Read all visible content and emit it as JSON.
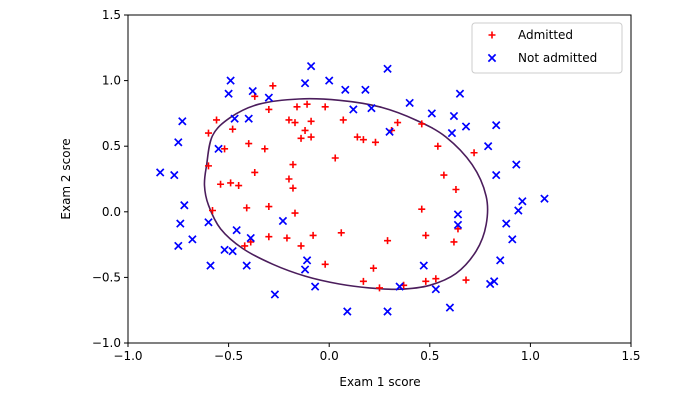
{
  "chart_data": {
    "type": "scatter",
    "xlabel": "Exam 1 score",
    "ylabel": "Exam 2 score",
    "xlim": [
      -1.0,
      1.5
    ],
    "ylim": [
      -1.0,
      1.5
    ],
    "xticks": [
      "−1.0",
      "−0.5",
      "0.0",
      "0.5",
      "1.0",
      "1.5"
    ],
    "yticks": [
      "−1.0",
      "−0.5",
      "0.0",
      "0.5",
      "1.0",
      "1.5"
    ],
    "grid": false,
    "legend_position": "top-right",
    "series": [
      {
        "name": "Admitted",
        "marker": "plus",
        "color": "#ff0000",
        "points": [
          [
            -0.28,
            0.96
          ],
          [
            -0.37,
            0.88
          ],
          [
            -0.3,
            0.78
          ],
          [
            -0.16,
            0.8
          ],
          [
            -0.11,
            0.82
          ],
          [
            -0.02,
            0.8
          ],
          [
            0.07,
            0.7
          ],
          [
            -0.2,
            0.7
          ],
          [
            -0.17,
            0.68
          ],
          [
            -0.09,
            0.69
          ],
          [
            -0.56,
            0.7
          ],
          [
            -0.48,
            0.63
          ],
          [
            -0.6,
            0.6
          ],
          [
            -0.52,
            0.48
          ],
          [
            -0.4,
            0.52
          ],
          [
            -0.32,
            0.48
          ],
          [
            -0.14,
            0.56
          ],
          [
            -0.09,
            0.57
          ],
          [
            -0.12,
            0.62
          ],
          [
            0.14,
            0.57
          ],
          [
            0.17,
            0.55
          ],
          [
            0.23,
            0.53
          ],
          [
            0.31,
            0.62
          ],
          [
            0.34,
            0.68
          ],
          [
            0.46,
            0.67
          ],
          [
            0.54,
            0.5
          ],
          [
            0.57,
            0.28
          ],
          [
            0.63,
            0.17
          ],
          [
            0.72,
            0.45
          ],
          [
            0.03,
            0.41
          ],
          [
            -0.18,
            0.36
          ],
          [
            -0.6,
            0.35
          ],
          [
            -0.37,
            0.3
          ],
          [
            -0.49,
            0.22
          ],
          [
            -0.45,
            0.2
          ],
          [
            -0.54,
            0.21
          ],
          [
            -0.18,
            0.18
          ],
          [
            -0.2,
            0.25
          ],
          [
            -0.3,
            0.04
          ],
          [
            -0.41,
            0.03
          ],
          [
            -0.58,
            0.01
          ],
          [
            -0.17,
            -0.01
          ],
          [
            -0.3,
            -0.19
          ],
          [
            -0.21,
            -0.2
          ],
          [
            -0.39,
            -0.23
          ],
          [
            -0.42,
            -0.26
          ],
          [
            -0.14,
            -0.26
          ],
          [
            -0.08,
            -0.18
          ],
          [
            0.06,
            -0.16
          ],
          [
            -0.02,
            -0.4
          ],
          [
            0.17,
            -0.53
          ],
          [
            0.25,
            -0.58
          ],
          [
            0.22,
            -0.43
          ],
          [
            0.29,
            -0.22
          ],
          [
            0.37,
            -0.56
          ],
          [
            0.48,
            -0.53
          ],
          [
            0.53,
            -0.51
          ],
          [
            0.68,
            -0.52
          ],
          [
            0.62,
            -0.23
          ],
          [
            0.64,
            -0.13
          ],
          [
            0.48,
            -0.18
          ],
          [
            0.46,
            0.02
          ]
        ]
      },
      {
        "name": "Not admitted",
        "marker": "x",
        "color": "#0000ff",
        "points": [
          [
            -0.49,
            1.0
          ],
          [
            -0.5,
            0.9
          ],
          [
            -0.38,
            0.92
          ],
          [
            -0.3,
            0.87
          ],
          [
            -0.09,
            1.11
          ],
          [
            -0.12,
            0.98
          ],
          [
            0.0,
            1.0
          ],
          [
            0.08,
            0.93
          ],
          [
            0.18,
            0.93
          ],
          [
            0.29,
            1.09
          ],
          [
            0.4,
            0.83
          ],
          [
            0.51,
            0.75
          ],
          [
            0.65,
            0.9
          ],
          [
            0.62,
            0.73
          ],
          [
            0.68,
            0.65
          ],
          [
            0.83,
            0.66
          ],
          [
            0.61,
            0.6
          ],
          [
            0.79,
            0.5
          ],
          [
            0.93,
            0.36
          ],
          [
            0.83,
            0.28
          ],
          [
            0.96,
            0.08
          ],
          [
            1.07,
            0.1
          ],
          [
            0.94,
            0.01
          ],
          [
            0.88,
            -0.09
          ],
          [
            0.91,
            -0.21
          ],
          [
            0.85,
            -0.37
          ],
          [
            0.82,
            -0.53
          ],
          [
            0.8,
            -0.55
          ],
          [
            0.64,
            -0.02
          ],
          [
            0.64,
            -0.1
          ],
          [
            0.47,
            -0.41
          ],
          [
            0.53,
            -0.59
          ],
          [
            0.6,
            -0.73
          ],
          [
            0.35,
            -0.57
          ],
          [
            0.29,
            -0.76
          ],
          [
            0.09,
            -0.76
          ],
          [
            -0.07,
            -0.57
          ],
          [
            -0.27,
            -0.63
          ],
          [
            -0.11,
            -0.37
          ],
          [
            -0.12,
            -0.44
          ],
          [
            0.12,
            0.78
          ],
          [
            0.21,
            0.79
          ],
          [
            0.3,
            0.61
          ],
          [
            -0.4,
            0.71
          ],
          [
            -0.47,
            0.71
          ],
          [
            -0.55,
            0.48
          ],
          [
            -0.73,
            0.69
          ],
          [
            -0.75,
            0.53
          ],
          [
            -0.84,
            0.3
          ],
          [
            -0.77,
            0.28
          ],
          [
            -0.72,
            0.05
          ],
          [
            -0.74,
            -0.09
          ],
          [
            -0.6,
            -0.08
          ],
          [
            -0.68,
            -0.21
          ],
          [
            -0.75,
            -0.26
          ],
          [
            -0.46,
            -0.14
          ],
          [
            -0.48,
            -0.3
          ],
          [
            -0.39,
            -0.2
          ],
          [
            -0.41,
            -0.41
          ],
          [
            -0.59,
            -0.41
          ],
          [
            -0.23,
            -0.07
          ],
          [
            -0.52,
            -0.29
          ]
        ]
      }
    ],
    "decision_boundary": {
      "shape": "closed curve",
      "color": "#4b1d5c",
      "points": [
        [
          -0.61,
          0.35
        ],
        [
          -0.58,
          0.58
        ],
        [
          -0.49,
          0.72
        ],
        [
          -0.35,
          0.82
        ],
        [
          -0.15,
          0.86
        ],
        [
          0.05,
          0.85
        ],
        [
          0.25,
          0.8
        ],
        [
          0.43,
          0.7
        ],
        [
          0.58,
          0.57
        ],
        [
          0.71,
          0.36
        ],
        [
          0.78,
          0.12
        ],
        [
          0.78,
          -0.1
        ],
        [
          0.73,
          -0.3
        ],
        [
          0.63,
          -0.47
        ],
        [
          0.5,
          -0.56
        ],
        [
          0.35,
          -0.59
        ],
        [
          0.2,
          -0.58
        ],
        [
          0.05,
          -0.55
        ],
        [
          -0.12,
          -0.49
        ],
        [
          -0.28,
          -0.4
        ],
        [
          -0.43,
          -0.28
        ],
        [
          -0.54,
          -0.13
        ],
        [
          -0.6,
          0.05
        ],
        [
          -0.62,
          0.2
        ]
      ]
    }
  }
}
